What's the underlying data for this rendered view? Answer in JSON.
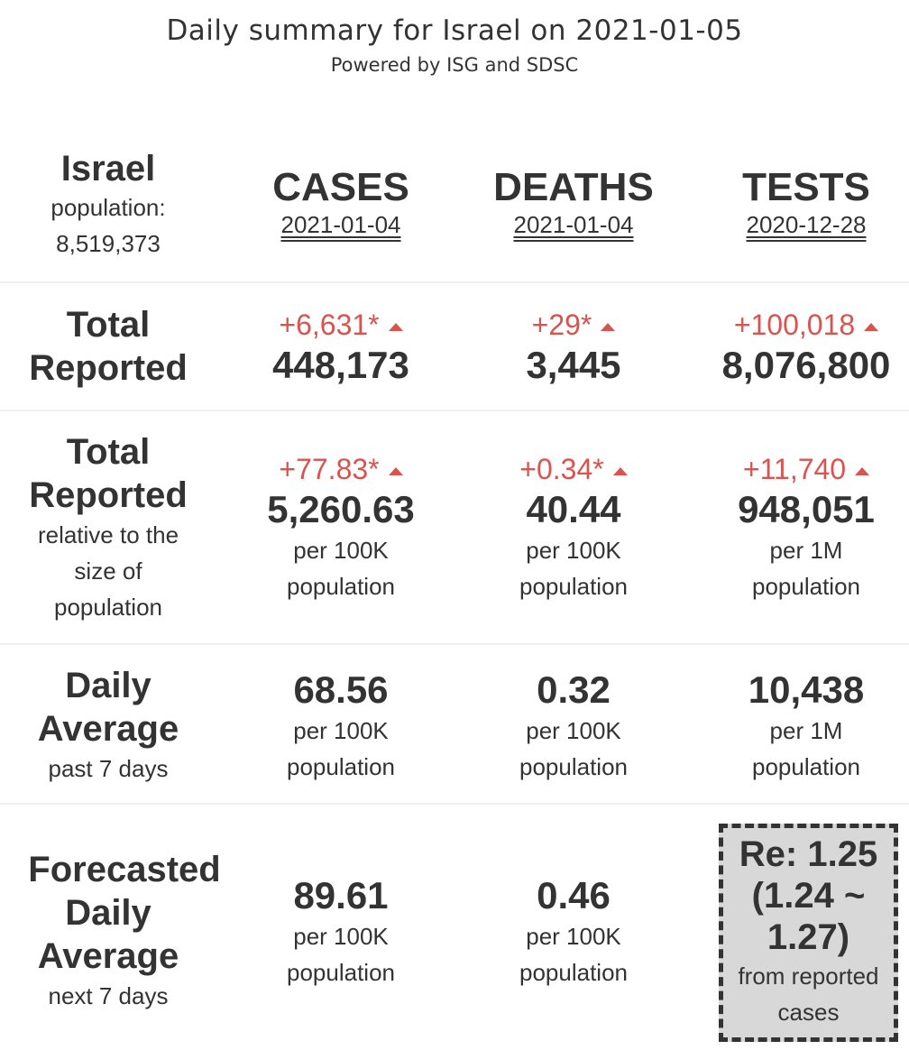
{
  "header": {
    "title": "Daily summary for Israel on 2021-01-05",
    "subtitle": "Powered by ISG and SDSC"
  },
  "country": {
    "name": "Israel",
    "population_label": "population:",
    "population_value": "8,519,373"
  },
  "columns": [
    {
      "name": "CASES",
      "date": "2021-01-04"
    },
    {
      "name": "DEATHS",
      "date": "2021-01-04"
    },
    {
      "name": "TESTS",
      "date": "2020-12-28"
    }
  ],
  "rows": {
    "total_reported": {
      "label_line1": "Total",
      "label_line2": "Reported",
      "cases": {
        "delta": "+6,631*",
        "value": "448,173"
      },
      "deaths": {
        "delta": "+29*",
        "value": "3,445"
      },
      "tests": {
        "delta": "+100,018",
        "value": "8,076,800"
      }
    },
    "relative": {
      "label_line1": "Total",
      "label_line2": "Reported",
      "sub_line1": "relative to the",
      "sub_line2": "size of",
      "sub_line3": "population",
      "cases": {
        "delta": "+77.83*",
        "value": "5,260.63",
        "unit1": "per 100K",
        "unit2": "population"
      },
      "deaths": {
        "delta": "+0.34*",
        "value": "40.44",
        "unit1": "per 100K",
        "unit2": "population"
      },
      "tests": {
        "delta": "+11,740",
        "value": "948,051",
        "unit1": "per 1M",
        "unit2": "population"
      }
    },
    "daily_average": {
      "label_line1": "Daily",
      "label_line2": "Average",
      "sub": "past 7 days",
      "cases": {
        "value": "68.56",
        "unit1": "per 100K",
        "unit2": "population"
      },
      "deaths": {
        "value": "0.32",
        "unit1": "per 100K",
        "unit2": "population"
      },
      "tests": {
        "value": "10,438",
        "unit1": "per 1M",
        "unit2": "population"
      }
    },
    "forecast": {
      "label_line1": "Forecasted",
      "label_line2": "Daily",
      "label_line3": "Average",
      "sub": "next 7 days",
      "cases": {
        "value": "89.61",
        "unit1": "per 100K",
        "unit2": "population"
      },
      "deaths": {
        "value": "0.46",
        "unit1": "per 100K",
        "unit2": "population"
      },
      "re": {
        "line1": "Re: 1.25",
        "line2": "(1.24 ~",
        "line3": "1.27)",
        "sub1": "from reported",
        "sub2": "cases"
      }
    }
  },
  "colors": {
    "delta": "#d9534f",
    "text": "#333333",
    "re_box_bg": "#d8d8d8"
  }
}
